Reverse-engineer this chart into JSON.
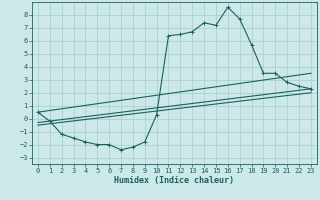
{
  "xlabel": "Humidex (Indice chaleur)",
  "bg_color": "#cce8e8",
  "grid_color": "#aacccc",
  "line_color": "#1a6060",
  "xlim": [
    -0.5,
    23.5
  ],
  "ylim": [
    -3.5,
    9.0
  ],
  "xticks": [
    0,
    1,
    2,
    3,
    4,
    5,
    6,
    7,
    8,
    9,
    10,
    11,
    12,
    13,
    14,
    15,
    16,
    17,
    18,
    19,
    20,
    21,
    22,
    23
  ],
  "yticks": [
    -3,
    -2,
    -1,
    0,
    1,
    2,
    3,
    4,
    5,
    6,
    7,
    8
  ],
  "main_x": [
    0,
    1,
    2,
    3,
    4,
    5,
    6,
    7,
    8,
    9,
    10,
    11,
    12,
    13,
    14,
    15,
    16,
    17,
    18,
    19,
    20,
    21,
    22,
    23
  ],
  "main_y": [
    0.5,
    -0.2,
    -1.2,
    -1.5,
    -1.8,
    -2.0,
    -2.0,
    -2.4,
    -2.2,
    -1.8,
    0.3,
    6.4,
    6.5,
    6.7,
    7.4,
    7.2,
    8.6,
    7.7,
    5.7,
    3.5,
    3.5,
    2.8,
    2.5,
    2.3
  ],
  "line2_x": [
    0,
    23
  ],
  "line2_y": [
    0.5,
    3.5
  ],
  "line3_x": [
    0,
    23
  ],
  "line3_y": [
    -0.3,
    2.3
  ],
  "line4_x": [
    0,
    23
  ],
  "line4_y": [
    -0.5,
    2.0
  ]
}
